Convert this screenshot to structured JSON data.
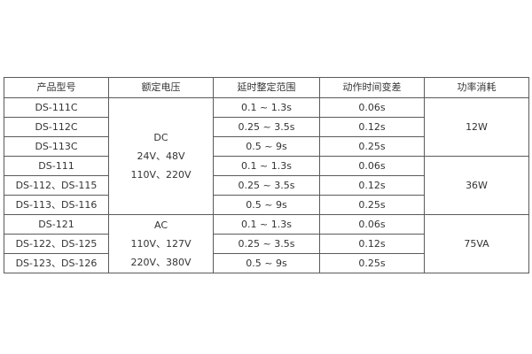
{
  "headers": [
    "产品型号",
    "额定电压",
    "延时整定范围",
    "动作时间变差",
    "功率消耗"
  ],
  "models": [
    "DS-111C",
    "DS-112C",
    "DS-113C",
    "DS-111",
    "DS-112、DS-115",
    "DS-113、DS-116",
    "DS-121",
    "DS-122、DS-125",
    "DS-123、DS-126"
  ],
  "voltage_groups": [
    {
      "lines": [
        "DC",
        "24V、48V",
        "110V、220V"
      ]
    },
    {
      "lines": [
        "AC",
        "110V、127V",
        "220V、380V"
      ]
    }
  ],
  "delay_ranges": [
    "0.1 ~ 1.3s",
    "0.25 ~ 3.5s",
    "0.5 ~ 9s",
    "0.1 ~ 1.3s",
    "0.25 ~ 3.5s",
    "0.5 ~ 9s",
    "0.1 ~ 1.3s",
    "0.25 ~ 3.5s",
    "0.5 ~ 9s"
  ],
  "time_variations": [
    "0.06s",
    "0.12s",
    "0.25s",
    "0.06s",
    "0.12s",
    "0.25s",
    "0.06s",
    "0.12s",
    "0.25s"
  ],
  "power": [
    "12W",
    "36W",
    "75VA"
  ]
}
